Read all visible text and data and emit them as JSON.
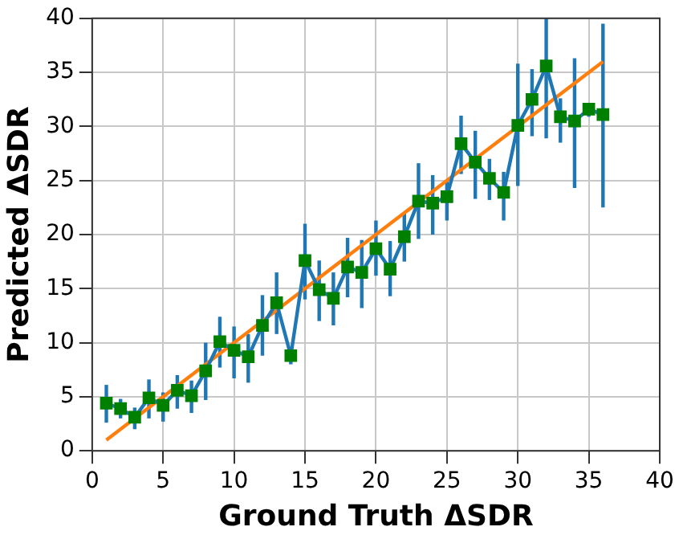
{
  "chart_data": {
    "type": "line",
    "xlabel": "Ground Truth ΔSDR",
    "ylabel": "Predicted ΔSDR",
    "xlim": [
      0,
      40
    ],
    "ylim": [
      0,
      40
    ],
    "xticks": [
      0,
      5,
      10,
      15,
      20,
      25,
      30,
      35,
      40
    ],
    "yticks": [
      0,
      5,
      10,
      15,
      20,
      25,
      30,
      35,
      40
    ],
    "grid": true,
    "series": [
      {
        "color": "#1f77b4",
        "marker": "square",
        "colors": [
          "#008000",
          "#008000",
          "#008000",
          "#008000",
          "#008000",
          "#008000",
          "#008000",
          "#008000",
          "#008000",
          "#008000",
          "#008000",
          "#008000",
          "#008000",
          "#008000",
          "#008000",
          "#008000",
          "#008000",
          "#008000",
          "#008000",
          "#008000",
          "#008000",
          "#008000",
          "#008000",
          "#008000",
          "#008000",
          "#008000",
          "#008000",
          "#008000",
          "#008000",
          "#008000",
          "#008000",
          "#008000",
          "#008000",
          "#008000",
          "#008000",
          "#008000"
        ],
        "x": [
          1,
          2,
          3,
          4,
          5,
          6,
          7,
          8,
          9,
          10,
          11,
          12,
          13,
          14,
          15,
          16,
          17,
          18,
          19,
          20,
          21,
          22,
          23,
          24,
          25,
          26,
          27,
          28,
          29,
          30,
          31,
          32,
          33,
          34,
          35,
          36
        ],
        "values": [
          4.4,
          3.9,
          3.1,
          4.9,
          4.2,
          5.6,
          5.1,
          7.4,
          10.1,
          9.3,
          8.7,
          11.6,
          13.7,
          8.8,
          17.6,
          14.9,
          14.1,
          17,
          16.5,
          18.7,
          16.8,
          19.8,
          23.1,
          22.9,
          23.5,
          28.4,
          26.7,
          25.2,
          23.9,
          30.1,
          32.5,
          35.6,
          30.9,
          30.5,
          31.6,
          31.1
        ],
        "errors": [
          [
            2.6,
            6.1
          ],
          [
            3,
            4.8
          ],
          [
            2,
            4
          ],
          [
            3,
            6.6
          ],
          [
            2.7,
            5.4
          ],
          [
            3.9,
            7
          ],
          [
            3.5,
            6.5
          ],
          [
            4.7,
            10
          ],
          [
            7.7,
            12.4
          ],
          [
            6.7,
            11.5
          ],
          [
            6.3,
            10.8
          ],
          [
            8.8,
            14.4
          ],
          [
            10.8,
            16.5
          ],
          [
            8,
            8.8
          ],
          [
            14,
            21
          ],
          [
            12,
            17.6
          ],
          [
            11.6,
            16.5
          ],
          [
            14.2,
            19.7
          ],
          [
            13.2,
            19.5
          ],
          [
            16.2,
            21.3
          ],
          [
            14.3,
            19.4
          ],
          [
            17.5,
            22
          ],
          [
            19.6,
            26.6
          ],
          [
            20,
            25.5
          ],
          [
            21.3,
            25
          ],
          [
            25.6,
            31
          ],
          [
            23.3,
            29.6
          ],
          [
            23.2,
            27
          ],
          [
            21.3,
            25.8
          ],
          [
            24.5,
            35.8
          ],
          [
            29.1,
            35.3
          ],
          [
            28.9,
            40
          ],
          [
            28.5,
            32.6
          ],
          [
            24.3,
            36.3
          ],
          [
            30.9,
            32
          ],
          [
            22.5,
            39.5
          ]
        ]
      },
      {
        "color": "#ff7f0e",
        "marker": "none",
        "x": [
          1,
          36
        ],
        "values": [
          1,
          36
        ]
      }
    ]
  }
}
